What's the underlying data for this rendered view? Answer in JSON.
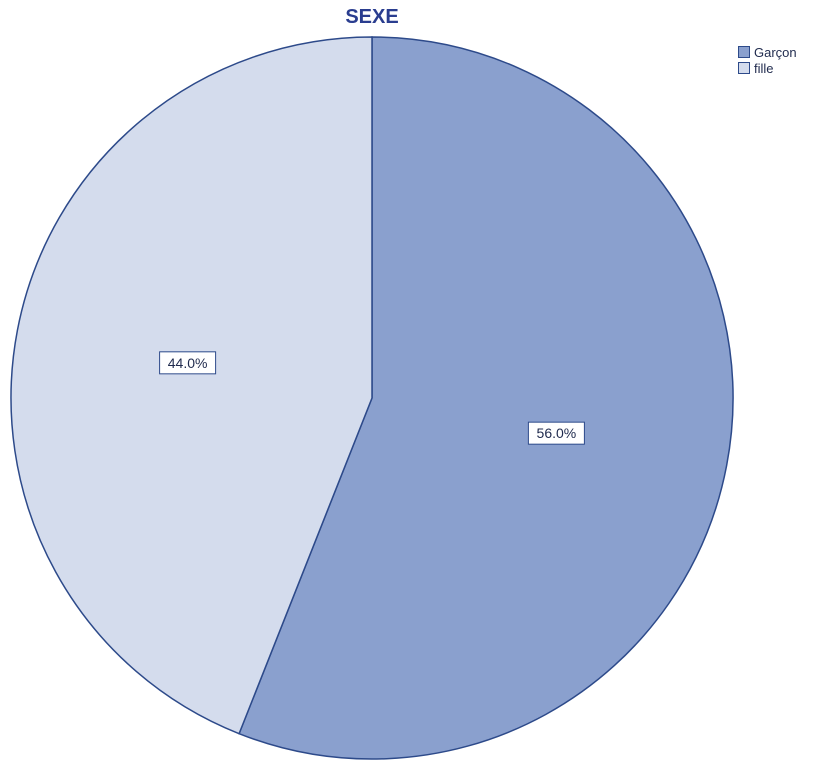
{
  "chart_data": {
    "type": "pie",
    "title": "SEXE",
    "categories": [
      "Garçon",
      "fille"
    ],
    "values": [
      56.0,
      44.0
    ],
    "labels": [
      "56.0%",
      "44.0%"
    ],
    "colors": [
      "#8aa0ce",
      "#d4dced"
    ],
    "outline_color": "#2d4a8a",
    "start_angle_deg": 0,
    "direction": "clockwise",
    "legend_position": "top-right"
  }
}
